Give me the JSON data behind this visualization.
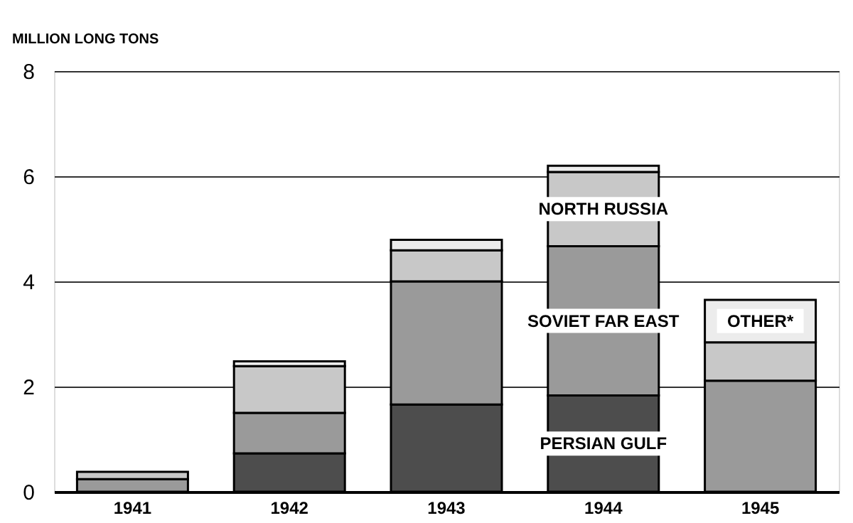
{
  "chart_data": {
    "type": "bar",
    "stacked": true,
    "ylabel": "MILLION LONG TONS",
    "categories": [
      "1941",
      "1942",
      "1943",
      "1944",
      "1945"
    ],
    "series": [
      {
        "name": "PERSIAN GULF",
        "color": "#4d4d4d",
        "values": [
          0,
          0.73,
          1.66,
          1.83,
          null
        ]
      },
      {
        "name": "SOVIET FAR EAST",
        "color": "#9a9a9a",
        "values": [
          0.24,
          0.77,
          2.34,
          2.84,
          2.11
        ]
      },
      {
        "name": "NORTH RUSSIA",
        "color": "#c8c8c8",
        "values": [
          0.14,
          0.89,
          0.59,
          1.41,
          0.73
        ]
      },
      {
        "name": "OTHER*",
        "color": "#ececec",
        "values": [
          0,
          0.09,
          0.2,
          0.12,
          0.81
        ]
      }
    ],
    "ylim": [
      0,
      8
    ],
    "yticks": [
      0,
      2,
      4,
      6,
      8
    ],
    "grid": "y",
    "legend": false
  }
}
